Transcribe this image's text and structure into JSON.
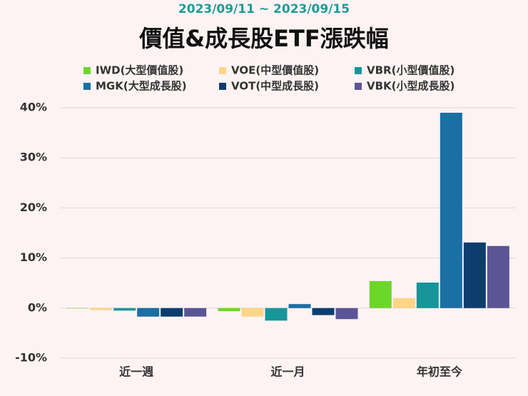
{
  "chart_data": {
    "type": "bar",
    "subtitle": "2023/09/11 ~ 2023/09/15",
    "title": "價值&成長股ETF漲跌幅",
    "categories": [
      "近一週",
      "近一月",
      "年初至今"
    ],
    "series": [
      {
        "name": "IWD(大型價值股)",
        "color": "#6dd62a",
        "values": [
          0,
          -0.6,
          5.4
        ]
      },
      {
        "name": "VOE(中型價值股)",
        "color": "#fdd587",
        "values": [
          -0.4,
          -1.7,
          2.0
        ]
      },
      {
        "name": "VBR(小型價值股)",
        "color": "#17969a",
        "values": [
          -0.5,
          -2.5,
          5.1
        ]
      },
      {
        "name": "MGK(大型成長股)",
        "color": "#1a6fa3",
        "values": [
          -1.7,
          0.8,
          39.0
        ]
      },
      {
        "name": "VOT(中型成長股)",
        "color": "#0d3d6e",
        "values": [
          -1.7,
          -1.4,
          13.1
        ]
      },
      {
        "name": "VBK(小型成長股)",
        "color": "#5b5596",
        "values": [
          -1.7,
          -2.2,
          12.4
        ]
      }
    ],
    "ylim": [
      -10,
      40
    ],
    "yticks": [
      {
        "value": -10,
        "label": "-10%"
      },
      {
        "value": 0,
        "label": "0%"
      },
      {
        "value": 10,
        "label": "10%"
      },
      {
        "value": 20,
        "label": "20%"
      },
      {
        "value": 30,
        "label": "30%"
      },
      {
        "value": 40,
        "label": "40%"
      }
    ],
    "grid": true,
    "legend": "top"
  }
}
